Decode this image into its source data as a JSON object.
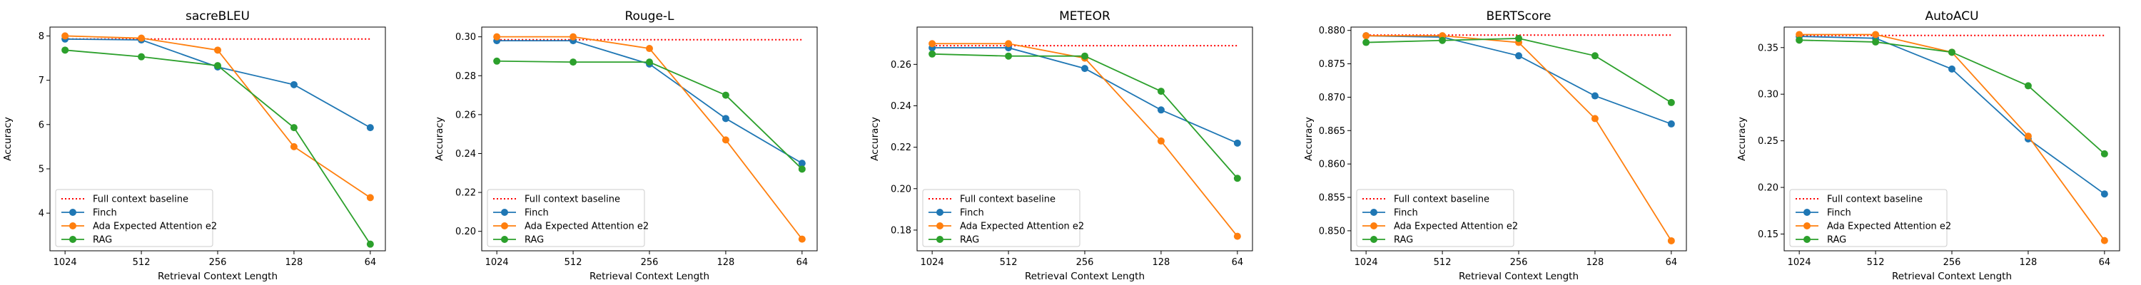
{
  "colors": {
    "finch": "#1f77b4",
    "ada": "#ff7f0e",
    "rag": "#2ca02c",
    "baseline": "#ff0000",
    "axis": "#000000"
  },
  "legend_labels": [
    "Full context baseline",
    "Finch",
    "Ada Expected Attention e2",
    "RAG"
  ],
  "chart_data": [
    {
      "type": "line",
      "title": "sacreBLEU",
      "xlabel": "Retrieval Context Length",
      "ylabel": "Accuracy",
      "x": [
        1024,
        512,
        256,
        128,
        64
      ],
      "x_tick_labels": [
        "1024",
        "512",
        "256",
        "128",
        "64"
      ],
      "x_scale": "log, reversed",
      "ylim": [
        3.15,
        8.2
      ],
      "y_ticks": [
        4,
        5,
        6,
        7,
        8
      ],
      "y_tick_labels": [
        "4",
        "5",
        "6",
        "7",
        "8"
      ],
      "baseline": 7.93,
      "legend_position": "lower-left",
      "grid": false,
      "series": [
        {
          "name": "Finch",
          "values": [
            7.93,
            7.91,
            7.3,
            6.9,
            5.93
          ]
        },
        {
          "name": "Ada Expected Attention e2",
          "values": [
            8.0,
            7.95,
            7.68,
            5.5,
            4.35
          ]
        },
        {
          "name": "RAG",
          "values": [
            7.68,
            7.53,
            7.33,
            5.93,
            3.3
          ]
        }
      ]
    },
    {
      "type": "line",
      "title": "Rouge-L",
      "xlabel": "Retrieval Context Length",
      "ylabel": "Accuracy",
      "x": [
        1024,
        512,
        256,
        128,
        64
      ],
      "x_tick_labels": [
        "1024",
        "512",
        "256",
        "128",
        "64"
      ],
      "x_scale": "log, reversed",
      "ylim": [
        0.19,
        0.305
      ],
      "y_ticks": [
        0.2,
        0.22,
        0.24,
        0.26,
        0.28,
        0.3
      ],
      "y_tick_labels": [
        "0.20",
        "0.22",
        "0.24",
        "0.26",
        "0.28",
        "0.30"
      ],
      "baseline": 0.2985,
      "legend_position": "lower-left",
      "grid": false,
      "series": [
        {
          "name": "Finch",
          "values": [
            0.298,
            0.298,
            0.286,
            0.258,
            0.235
          ]
        },
        {
          "name": "Ada Expected Attention e2",
          "values": [
            0.3,
            0.3,
            0.294,
            0.247,
            0.196
          ]
        },
        {
          "name": "RAG",
          "values": [
            0.2875,
            0.287,
            0.287,
            0.27,
            0.232
          ]
        }
      ]
    },
    {
      "type": "line",
      "title": "METEOR",
      "xlabel": "Retrieval Context Length",
      "ylabel": "Accuracy",
      "x": [
        1024,
        512,
        256,
        128,
        64
      ],
      "x_tick_labels": [
        "1024",
        "512",
        "256",
        "128",
        "64"
      ],
      "x_scale": "log, reversed",
      "ylim": [
        0.17,
        0.278
      ],
      "y_ticks": [
        0.18,
        0.2,
        0.22,
        0.24,
        0.26
      ],
      "y_tick_labels": [
        "0.18",
        "0.20",
        "0.22",
        "0.24",
        "0.26"
      ],
      "baseline": 0.269,
      "legend_position": "lower-left",
      "grid": false,
      "series": [
        {
          "name": "Finch",
          "values": [
            0.268,
            0.268,
            0.258,
            0.238,
            0.222
          ]
        },
        {
          "name": "Ada Expected Attention e2",
          "values": [
            0.27,
            0.27,
            0.263,
            0.223,
            0.177
          ]
        },
        {
          "name": "RAG",
          "values": [
            0.265,
            0.264,
            0.264,
            0.247,
            0.205
          ]
        }
      ]
    },
    {
      "type": "line",
      "title": "BERTScore",
      "xlabel": "Retrieval Context Length",
      "ylabel": "Accuracy",
      "x": [
        1024,
        512,
        256,
        128,
        64
      ],
      "x_tick_labels": [
        "1024",
        "512",
        "256",
        "128",
        "64"
      ],
      "x_scale": "log, reversed",
      "ylim": [
        0.847,
        0.8805
      ],
      "y_ticks": [
        0.85,
        0.855,
        0.86,
        0.865,
        0.87,
        0.875,
        0.88
      ],
      "y_tick_labels": [
        "0.850",
        "0.855",
        "0.860",
        "0.865",
        "0.870",
        "0.875",
        "0.880"
      ],
      "baseline": 0.8793,
      "legend_position": "lower-left",
      "grid": false,
      "series": [
        {
          "name": "Finch",
          "values": [
            0.8792,
            0.879,
            0.8762,
            0.8702,
            0.866
          ]
        },
        {
          "name": "Ada Expected Attention e2",
          "values": [
            0.8792,
            0.8792,
            0.8782,
            0.8668,
            0.8485
          ]
        },
        {
          "name": "RAG",
          "values": [
            0.8782,
            0.8785,
            0.8788,
            0.8762,
            0.8692
          ]
        }
      ]
    },
    {
      "type": "line",
      "title": "AutoACU",
      "xlabel": "Retrieval Context Length",
      "ylabel": "Accuracy",
      "x": [
        1024,
        512,
        256,
        128,
        64
      ],
      "x_tick_labels": [
        "1024",
        "512",
        "256",
        "128",
        "64"
      ],
      "x_scale": "log, reversed",
      "ylim": [
        0.132,
        0.372
      ],
      "y_ticks": [
        0.15,
        0.2,
        0.25,
        0.3,
        0.35
      ],
      "y_tick_labels": [
        "0.15",
        "0.20",
        "0.25",
        "0.30",
        "0.35"
      ],
      "baseline": 0.363,
      "legend_position": "lower-left",
      "grid": false,
      "series": [
        {
          "name": "Finch",
          "values": [
            0.362,
            0.36,
            0.327,
            0.252,
            0.193
          ]
        },
        {
          "name": "Ada Expected Attention e2",
          "values": [
            0.364,
            0.364,
            0.345,
            0.255,
            0.143
          ]
        },
        {
          "name": "RAG",
          "values": [
            0.358,
            0.356,
            0.345,
            0.309,
            0.236
          ]
        }
      ]
    }
  ]
}
